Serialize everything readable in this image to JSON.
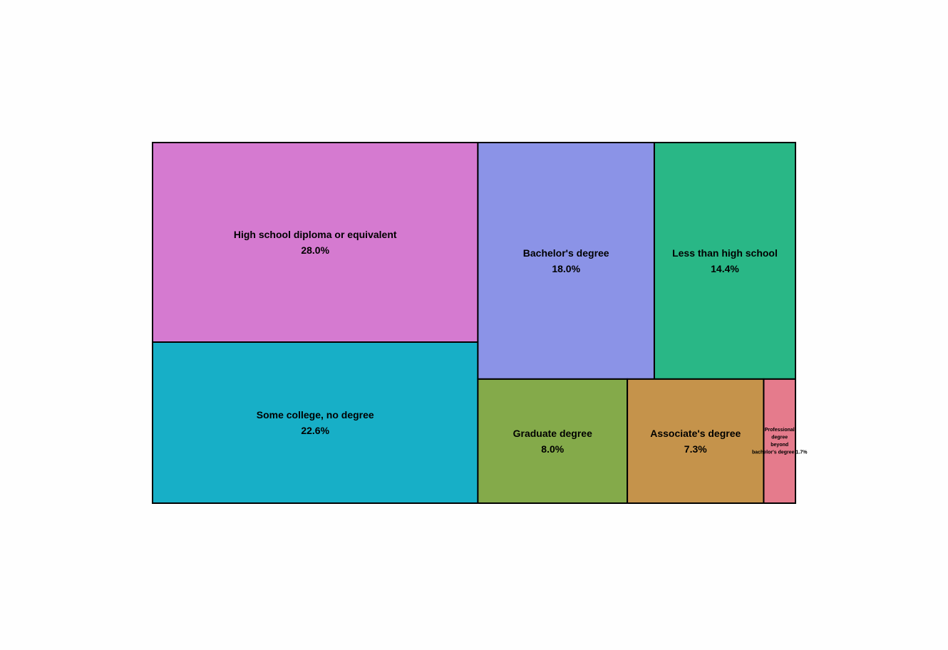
{
  "chart_data": {
    "type": "treemap",
    "title": "",
    "items": [
      {
        "label": "High school diploma or equivalent",
        "value": 28.0,
        "value_label": "28.0%",
        "color": "#d57ad0"
      },
      {
        "label": "Some college, no degree",
        "value": 22.6,
        "value_label": "22.6%",
        "color": "#17afc7"
      },
      {
        "label": "Bachelor's degree",
        "value": 18.0,
        "value_label": "18.0%",
        "color": "#8b93e7"
      },
      {
        "label": "Less than high school",
        "value": 14.4,
        "value_label": "14.4%",
        "color": "#29b786"
      },
      {
        "label": "Graduate degree",
        "value": 8.0,
        "value_label": "8.0%",
        "color": "#84aa4a"
      },
      {
        "label": "Associate's degree",
        "value": 7.3,
        "value_label": "7.3%",
        "color": "#c5934b"
      },
      {
        "label": "Professional degree beyond bachelor's degree",
        "value": 1.7,
        "value_label": "1.7%",
        "color": "#e57b8c"
      }
    ],
    "border_color": "#000000"
  }
}
